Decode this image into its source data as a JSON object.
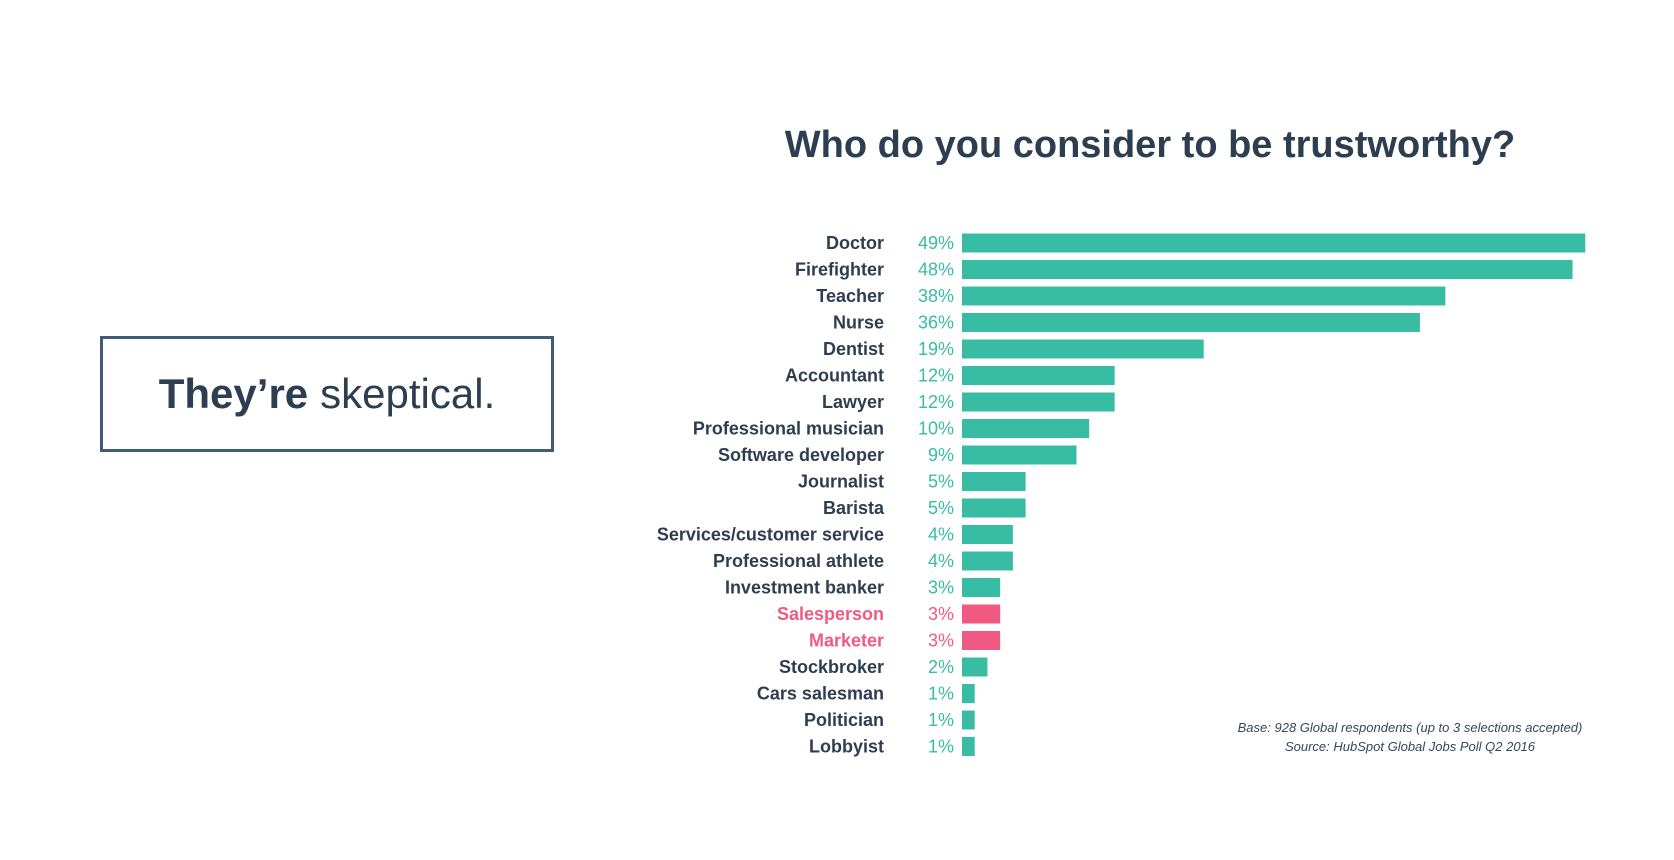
{
  "callout": {
    "bold_text": "They’re",
    "light_text": "skeptical."
  },
  "chart_data": {
    "type": "bar",
    "orientation": "horizontal",
    "title": "Who do you consider to be trustworthy?",
    "xlabel": "",
    "ylabel": "",
    "xlim": [
      0,
      50
    ],
    "grid": false,
    "legend": "none",
    "value_suffix": "%",
    "categories": [
      "Doctor",
      "Firefighter",
      "Teacher",
      "Nurse",
      "Dentist",
      "Accountant",
      "Lawyer",
      "Professional musician",
      "Software developer",
      "Journalist",
      "Barista",
      "Services/customer service",
      "Professional athlete",
      "Investment banker",
      "Salesperson",
      "Marketer",
      "Stockbroker",
      "Cars salesman",
      "Politician",
      "Lobbyist"
    ],
    "values": [
      49,
      48,
      38,
      36,
      19,
      12,
      12,
      10,
      9,
      5,
      5,
      4,
      4,
      3,
      3,
      3,
      2,
      1,
      1,
      1
    ],
    "highlighted": [
      "Salesperson",
      "Marketer"
    ],
    "colors": {
      "bar": "#38bca4",
      "highlight": "#f05a82",
      "label": "#2d3e50"
    }
  },
  "footnote": {
    "base": "Base: 928 Global respondents (up to 3 selections accepted)",
    "source": "Source: HubSpot Global Jobs Poll Q2 2016"
  }
}
